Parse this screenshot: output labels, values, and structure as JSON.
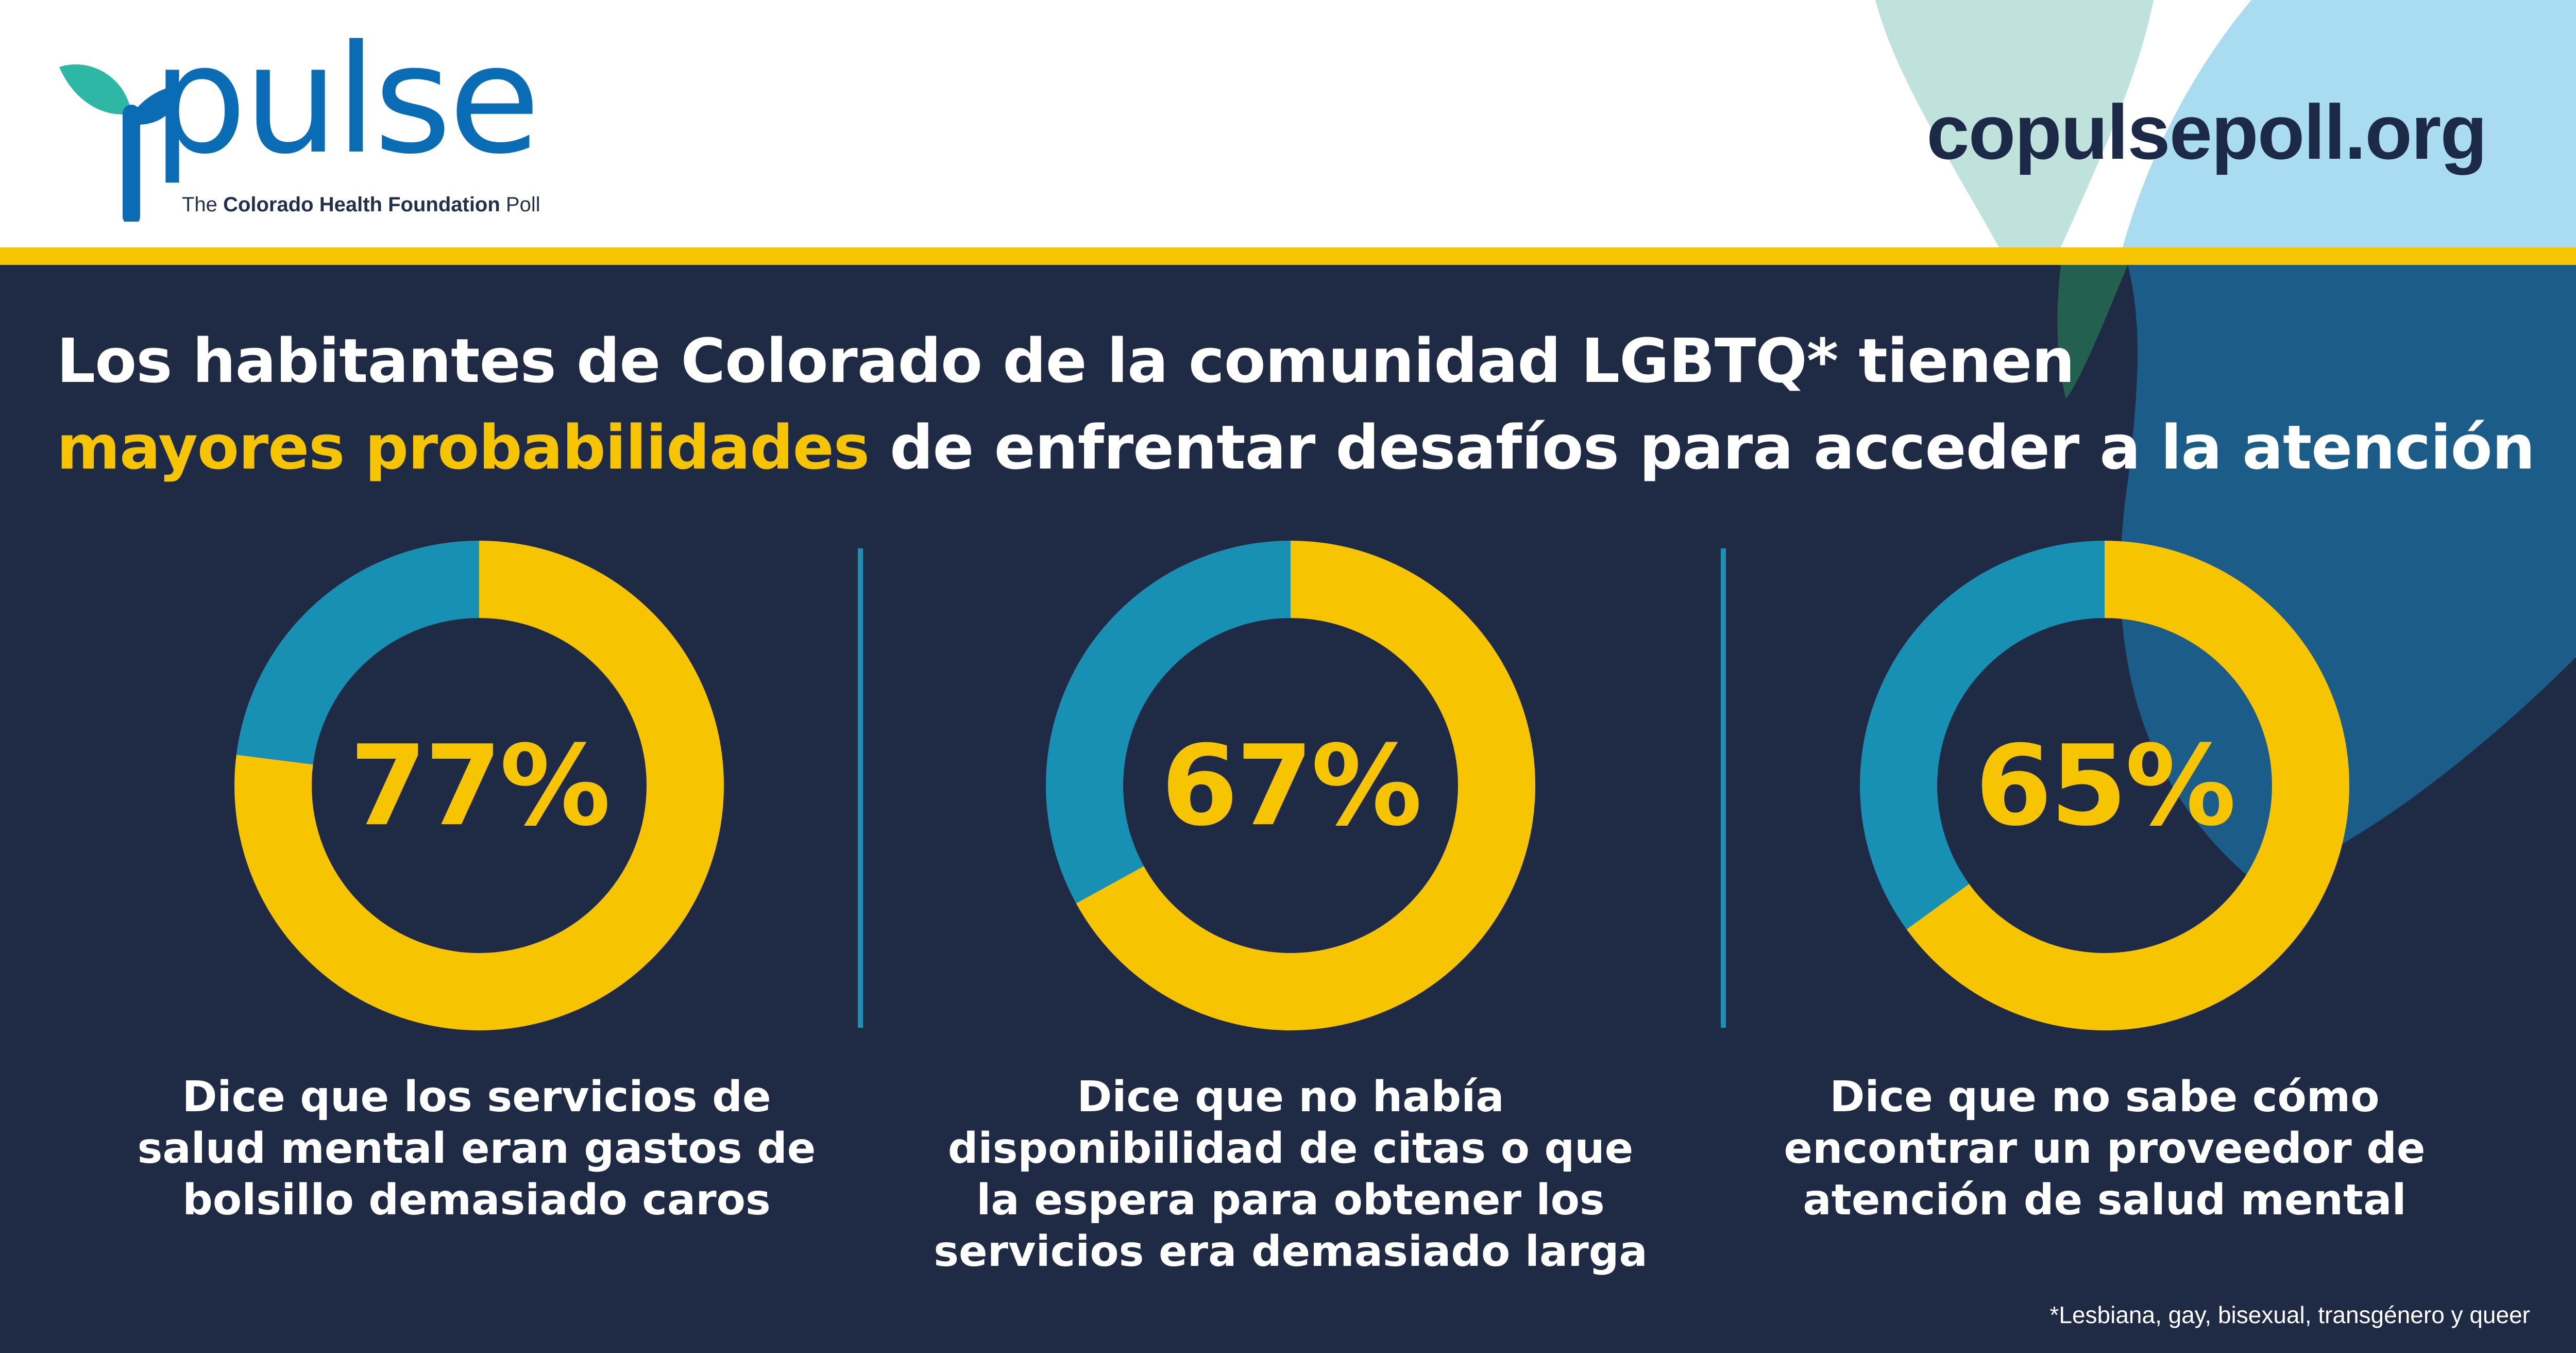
{
  "brand": {
    "logo_word": "pulse",
    "tagline_prefix": "The",
    "tagline_bold": "Colorado Health Foundation",
    "tagline_suffix": "Poll",
    "url": "copulsepoll.org"
  },
  "colors": {
    "navy": "#1f2a45",
    "gold": "#f6c400",
    "teal": "#1790b4",
    "logo_blue": "#0a6cb5",
    "logo_leaf": "#2fb7a6"
  },
  "headline": {
    "line1": "Los habitantes de Colorado de la comunidad LGBTQ* tienen",
    "line2_highlight": "mayores probabilidades",
    "line2_rest": " de enfrentar desafíos para acceder a la atención"
  },
  "chart_data": [
    {
      "type": "pie",
      "style": "donut",
      "label": "77%",
      "values": [
        77,
        23
      ],
      "series_colors": [
        "#f6c400",
        "#1790b4"
      ],
      "caption": [
        "Dice que los servicios de",
        "salud mental eran gastos de",
        "bolsillo demasiado caros"
      ]
    },
    {
      "type": "pie",
      "style": "donut",
      "label": "67%",
      "values": [
        67,
        33
      ],
      "series_colors": [
        "#f6c400",
        "#1790b4"
      ],
      "caption": [
        "Dice que no había",
        "disponibilidad de citas o que",
        "la espera para obtener los",
        "servicios era demasiado larga"
      ]
    },
    {
      "type": "pie",
      "style": "donut",
      "label": "65%",
      "values": [
        65,
        35
      ],
      "series_colors": [
        "#f6c400",
        "#1790b4"
      ],
      "caption": [
        "Dice que no sabe cómo",
        "encontrar un proveedor de",
        "atención de salud mental"
      ]
    }
  ],
  "footnote": "*Lesbiana, gay, bisexual, transgénero y queer"
}
